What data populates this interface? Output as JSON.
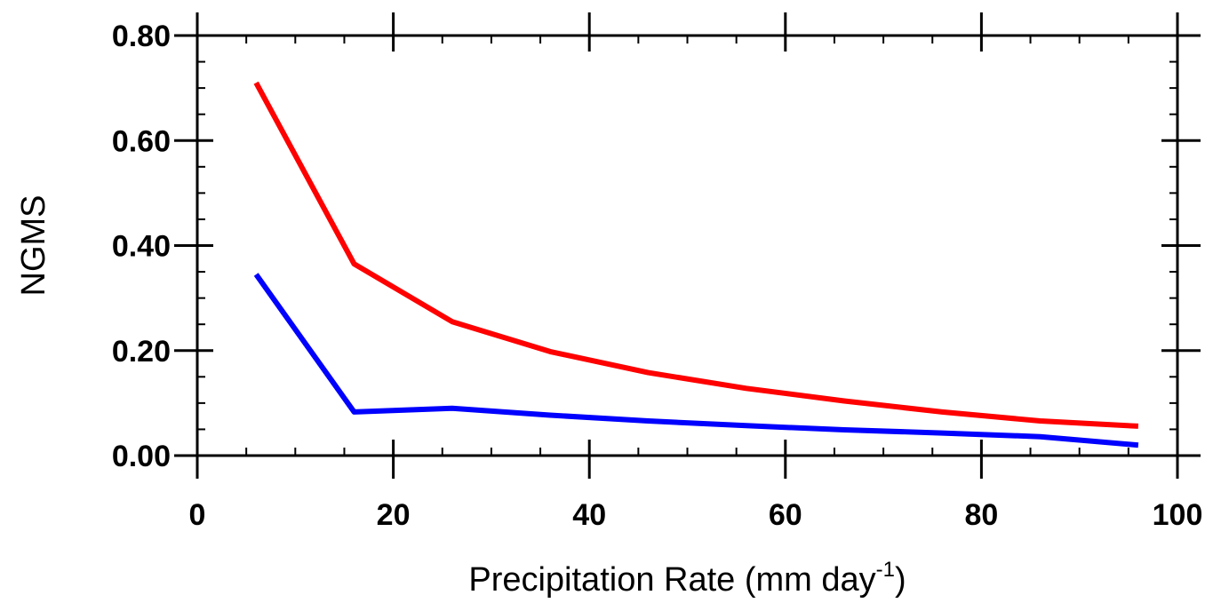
{
  "chart_data": {
    "type": "line",
    "title": "",
    "xlabel": "Precipitation Rate (mm day",
    "xlabel_superscript": "-1",
    "xlabel_suffix": ")",
    "ylabel": "NGMS",
    "xlim": [
      0,
      100
    ],
    "ylim": [
      0,
      0.8
    ],
    "x_ticks": [
      0,
      20,
      40,
      60,
      80,
      100
    ],
    "x_tick_labels": [
      "0",
      "20",
      "40",
      "60",
      "80",
      "100"
    ],
    "y_ticks": [
      0,
      0.2,
      0.4,
      0.6,
      0.8
    ],
    "y_tick_labels": [
      "0.00",
      "0.20",
      "0.40",
      "0.60",
      "0.80"
    ],
    "x_minor_step": 5,
    "y_minor_step": 0.05,
    "grid": false,
    "legend": "none",
    "series": [
      {
        "color": "#ff0000",
        "x": [
          6,
          16,
          26,
          36,
          46,
          56,
          66,
          76,
          86,
          96
        ],
        "y": [
          0.71,
          0.365,
          0.255,
          0.198,
          0.158,
          0.128,
          0.104,
          0.083,
          0.066,
          0.056
        ]
      },
      {
        "color": "#0000ff",
        "x": [
          6,
          16,
          26,
          36,
          46,
          56,
          66,
          76,
          86,
          96
        ],
        "y": [
          0.345,
          0.083,
          0.09,
          0.077,
          0.066,
          0.057,
          0.049,
          0.043,
          0.036,
          0.02
        ]
      }
    ]
  }
}
